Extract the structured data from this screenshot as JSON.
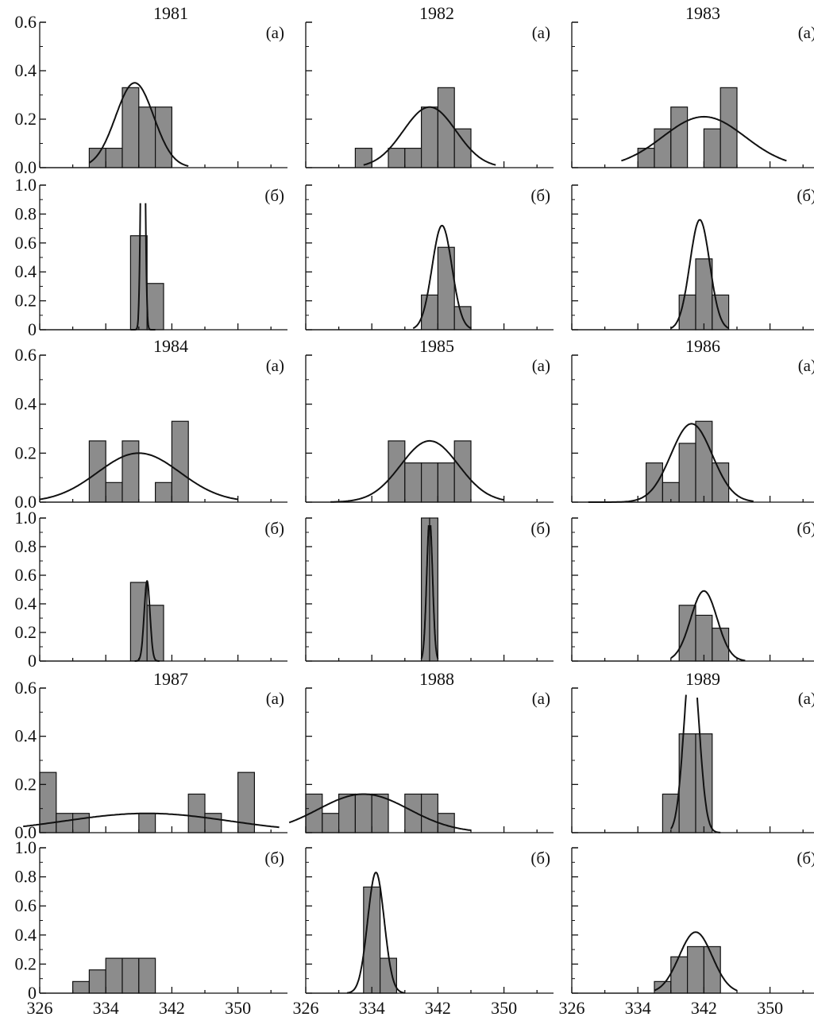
{
  "figure": {
    "x_tick_labels": [
      "326",
      "334",
      "342",
      "350"
    ],
    "bar_color": "#8c8c8c",
    "curve_color": "#111111"
  },
  "chart_data": [
    {
      "type": "bar",
      "title": "1981",
      "label": "(a)",
      "xlim": [
        326,
        356
      ],
      "ylim": [
        0,
        0.6
      ],
      "yticks": [
        "0.0",
        "0.2",
        "0.4",
        "0.6"
      ],
      "bins": [
        [
          332,
          334,
          0.08
        ],
        [
          334,
          336,
          0.08
        ],
        [
          336,
          338,
          0.33
        ],
        [
          338,
          340,
          0.25
        ],
        [
          340,
          342,
          0.25
        ]
      ],
      "fit": {
        "mean": 337.5,
        "sd": 2.3,
        "peak": 0.35,
        "range": [
          332,
          344
        ]
      }
    },
    {
      "type": "bar",
      "title": "1982",
      "label": "(a)",
      "xlim": [
        326,
        356
      ],
      "ylim": [
        0,
        0.6
      ],
      "yticks": [
        "0.0",
        "0.2",
        "0.4",
        "0.6"
      ],
      "bins": [
        [
          332,
          334,
          0.08
        ],
        [
          334,
          336,
          0
        ],
        [
          336,
          338,
          0.08
        ],
        [
          338,
          340,
          0.08
        ],
        [
          340,
          342,
          0.25
        ],
        [
          342,
          344,
          0.33
        ],
        [
          344,
          346,
          0.16
        ]
      ],
      "fit": {
        "mean": 341,
        "sd": 3.2,
        "peak": 0.25,
        "range": [
          333,
          349
        ]
      }
    },
    {
      "type": "bar",
      "title": "1983",
      "label": "(a)",
      "xlim": [
        326,
        356
      ],
      "ylim": [
        0,
        0.6
      ],
      "yticks": [
        "0.0",
        "0.2",
        "0.4",
        "0.6"
      ],
      "bins": [
        [
          334,
          336,
          0.08
        ],
        [
          336,
          338,
          0.16
        ],
        [
          338,
          340,
          0.25
        ],
        [
          342,
          344,
          0.16
        ],
        [
          344,
          346,
          0.33
        ]
      ],
      "fit": {
        "mean": 342,
        "sd": 5,
        "peak": 0.21,
        "range": [
          332,
          352
        ]
      }
    },
    {
      "type": "bar",
      "title": "",
      "label": "(б)",
      "xlim": [
        326,
        356
      ],
      "ylim": [
        0,
        1.0
      ],
      "yticks": [
        "0",
        "0.2",
        "0.4",
        "0.6",
        "0.8",
        "1.0"
      ],
      "bins": [
        [
          337,
          339,
          0.65
        ],
        [
          339,
          341,
          0.32
        ]
      ],
      "fit": {
        "mean": 338.5,
        "sd": 0.22,
        "peak": 2.5,
        "range": [
          337,
          340
        ]
      }
    },
    {
      "type": "bar",
      "title": "",
      "label": "(б)",
      "xlim": [
        326,
        356
      ],
      "ylim": [
        0,
        1.0
      ],
      "yticks": [
        "0",
        "0.2",
        "0.4",
        "0.6",
        "0.8",
        "1.0"
      ],
      "bins": [
        [
          340,
          342,
          0.24
        ],
        [
          342,
          344,
          0.57
        ],
        [
          344,
          346,
          0.16
        ]
      ],
      "fit": {
        "mean": 342.5,
        "sd": 1.2,
        "peak": 0.72,
        "range": [
          339,
          346
        ]
      }
    },
    {
      "type": "bar",
      "title": "",
      "label": "(б)",
      "xlim": [
        326,
        356
      ],
      "ylim": [
        0,
        1.0
      ],
      "yticks": [
        "0",
        "0.2",
        "0.4",
        "0.6",
        "0.8",
        "1.0"
      ],
      "bins": [
        [
          339,
          341,
          0.24
        ],
        [
          341,
          343,
          0.49
        ],
        [
          343,
          345,
          0.24
        ]
      ],
      "fit": {
        "mean": 341.5,
        "sd": 1.2,
        "peak": 0.76,
        "range": [
          338,
          345
        ]
      }
    },
    {
      "type": "bar",
      "title": "1984",
      "label": "(a)",
      "xlim": [
        326,
        356
      ],
      "ylim": [
        0,
        0.6
      ],
      "yticks": [
        "0.0",
        "0.2",
        "0.4",
        "0.6"
      ],
      "bins": [
        [
          332,
          334,
          0.25
        ],
        [
          334,
          336,
          0.08
        ],
        [
          336,
          338,
          0.25
        ],
        [
          340,
          342,
          0.08
        ],
        [
          342,
          344,
          0.33
        ]
      ],
      "fit": {
        "mean": 338,
        "sd": 5,
        "peak": 0.2,
        "range": [
          326,
          350
        ]
      }
    },
    {
      "type": "bar",
      "title": "1985",
      "label": "(a)",
      "xlim": [
        326,
        356
      ],
      "ylim": [
        0,
        0.6
      ],
      "yticks": [
        "0.0",
        "0.2",
        "0.4",
        "0.6"
      ],
      "bins": [
        [
          336,
          338,
          0.25
        ],
        [
          338,
          340,
          0.16
        ],
        [
          340,
          342,
          0.16
        ],
        [
          342,
          344,
          0.16
        ],
        [
          344,
          346,
          0.25
        ]
      ],
      "fit": {
        "mean": 341,
        "sd": 3.5,
        "peak": 0.25,
        "range": [
          329,
          350
        ]
      }
    },
    {
      "type": "bar",
      "title": "1986",
      "label": "(a)",
      "xlim": [
        326,
        356
      ],
      "ylim": [
        0,
        0.6
      ],
      "yticks": [
        "0.0",
        "0.2",
        "0.4",
        "0.6"
      ],
      "bins": [
        [
          335,
          337,
          0.16
        ],
        [
          337,
          339,
          0.08
        ],
        [
          339,
          341,
          0.24
        ],
        [
          341,
          343,
          0.33
        ],
        [
          343,
          345,
          0.16
        ]
      ],
      "fit": {
        "mean": 340.5,
        "sd": 2.5,
        "peak": 0.32,
        "range": [
          328,
          348
        ]
      }
    },
    {
      "type": "bar",
      "title": "",
      "label": "(б)",
      "xlim": [
        326,
        356
      ],
      "ylim": [
        0,
        1.0
      ],
      "yticks": [
        "0",
        "0.2",
        "0.4",
        "0.6",
        "0.8",
        "1.0"
      ],
      "bins": [
        [
          337,
          339,
          0.55
        ],
        [
          339,
          341,
          0.39
        ]
      ],
      "fit": {
        "mean": 339,
        "sd": 0.35,
        "peak": 0.56,
        "range": [
          337.5,
          340.5
        ]
      }
    },
    {
      "type": "bar",
      "title": "",
      "label": "(б)",
      "xlim": [
        326,
        356
      ],
      "ylim": [
        0,
        1.0
      ],
      "yticks": [
        "0",
        "0.2",
        "0.4",
        "0.6",
        "0.8",
        "1.0"
      ],
      "bins": [
        [
          340,
          341,
          1.0
        ],
        [
          341,
          342,
          1.0
        ]
      ],
      "fit": {
        "mean": 341,
        "sd": 0.35,
        "peak": 1.0,
        "range": [
          340,
          342
        ]
      }
    },
    {
      "type": "bar",
      "title": "",
      "label": "(б)",
      "xlim": [
        326,
        356
      ],
      "ylim": [
        0,
        1.0
      ],
      "yticks": [
        "0",
        "0.2",
        "0.4",
        "0.6",
        "0.8",
        "1.0"
      ],
      "bins": [
        [
          339,
          341,
          0.39
        ],
        [
          341,
          343,
          0.32
        ],
        [
          343,
          345,
          0.23
        ]
      ],
      "fit": {
        "mean": 342,
        "sd": 1.6,
        "peak": 0.49,
        "range": [
          338,
          347
        ]
      }
    },
    {
      "type": "bar",
      "title": "1987",
      "label": "(a)",
      "xlim": [
        326,
        356
      ],
      "ylim": [
        0,
        0.6
      ],
      "yticks": [
        "0.0",
        "0.2",
        "0.4",
        "0.6"
      ],
      "bins": [
        [
          326,
          328,
          0.25
        ],
        [
          328,
          330,
          0.08
        ],
        [
          330,
          332,
          0.08
        ],
        [
          338,
          340,
          0.08
        ],
        [
          344,
          346,
          0.16
        ],
        [
          346,
          348,
          0.08
        ],
        [
          350,
          352,
          0.25
        ]
      ],
      "fit": {
        "mean": 339,
        "sd": 10,
        "peak": 0.08,
        "range": [
          324,
          355
        ]
      }
    },
    {
      "type": "bar",
      "title": "1988",
      "label": "(a)",
      "xlim": [
        326,
        356
      ],
      "ylim": [
        0,
        0.6
      ],
      "yticks": [
        "0.0",
        "0.2",
        "0.4",
        "0.6"
      ],
      "bins": [
        [
          326,
          328,
          0.16
        ],
        [
          328,
          330,
          0.08
        ],
        [
          330,
          332,
          0.16
        ],
        [
          332,
          334,
          0.16
        ],
        [
          334,
          336,
          0.16
        ],
        [
          338,
          340,
          0.16
        ],
        [
          340,
          342,
          0.16
        ],
        [
          342,
          344,
          0.08
        ]
      ],
      "fit": {
        "mean": 333,
        "sd": 5.5,
        "peak": 0.16,
        "range": [
          324,
          346
        ]
      }
    },
    {
      "type": "bar",
      "title": "1989",
      "label": "(a)",
      "xlim": [
        326,
        356
      ],
      "ylim": [
        0,
        0.6
      ],
      "yticks": [
        "0.0",
        "0.2",
        "0.4",
        "0.6"
      ],
      "bins": [
        [
          337,
          339,
          0.16
        ],
        [
          339,
          341,
          0.41
        ],
        [
          341,
          343,
          0.41
        ]
      ],
      "fit": {
        "mean": 340.5,
        "sd": 0.9,
        "peak": 0.75,
        "range": [
          338,
          344
        ]
      }
    },
    {
      "type": "bar",
      "title": "",
      "label": "(б)",
      "xlim": [
        326,
        356
      ],
      "ylim": [
        0,
        1.0
      ],
      "yticks": [
        "0",
        "0.2",
        "0.4",
        "0.6",
        "0.8",
        "1.0"
      ],
      "bins": [
        [
          330,
          332,
          0.08
        ],
        [
          332,
          334,
          0.16
        ],
        [
          334,
          336,
          0.24
        ],
        [
          336,
          338,
          0.24
        ],
        [
          338,
          340,
          0.24
        ]
      ],
      "fit": null
    },
    {
      "type": "bar",
      "title": "",
      "label": "(б)",
      "xlim": [
        326,
        356
      ],
      "ylim": [
        0,
        1.0
      ],
      "yticks": [
        "0",
        "0.2",
        "0.4",
        "0.6",
        "0.8",
        "1.0"
      ],
      "bins": [
        [
          333,
          335,
          0.73
        ],
        [
          335,
          337,
          0.24
        ]
      ],
      "fit": {
        "mean": 334.5,
        "sd": 1.0,
        "peak": 0.83,
        "range": [
          331,
          338
        ]
      }
    },
    {
      "type": "bar",
      "title": "",
      "label": "(б)",
      "xlim": [
        326,
        356
      ],
      "ylim": [
        0,
        1.0
      ],
      "yticks": [
        "0",
        "0.2",
        "0.4",
        "0.6",
        "0.8",
        "1.0"
      ],
      "bins": [
        [
          336,
          338,
          0.08
        ],
        [
          338,
          340,
          0.25
        ],
        [
          340,
          342,
          0.32
        ],
        [
          342,
          344,
          0.32
        ]
      ],
      "fit": {
        "mean": 341,
        "sd": 2.0,
        "peak": 0.42,
        "range": [
          336,
          346
        ]
      }
    }
  ]
}
